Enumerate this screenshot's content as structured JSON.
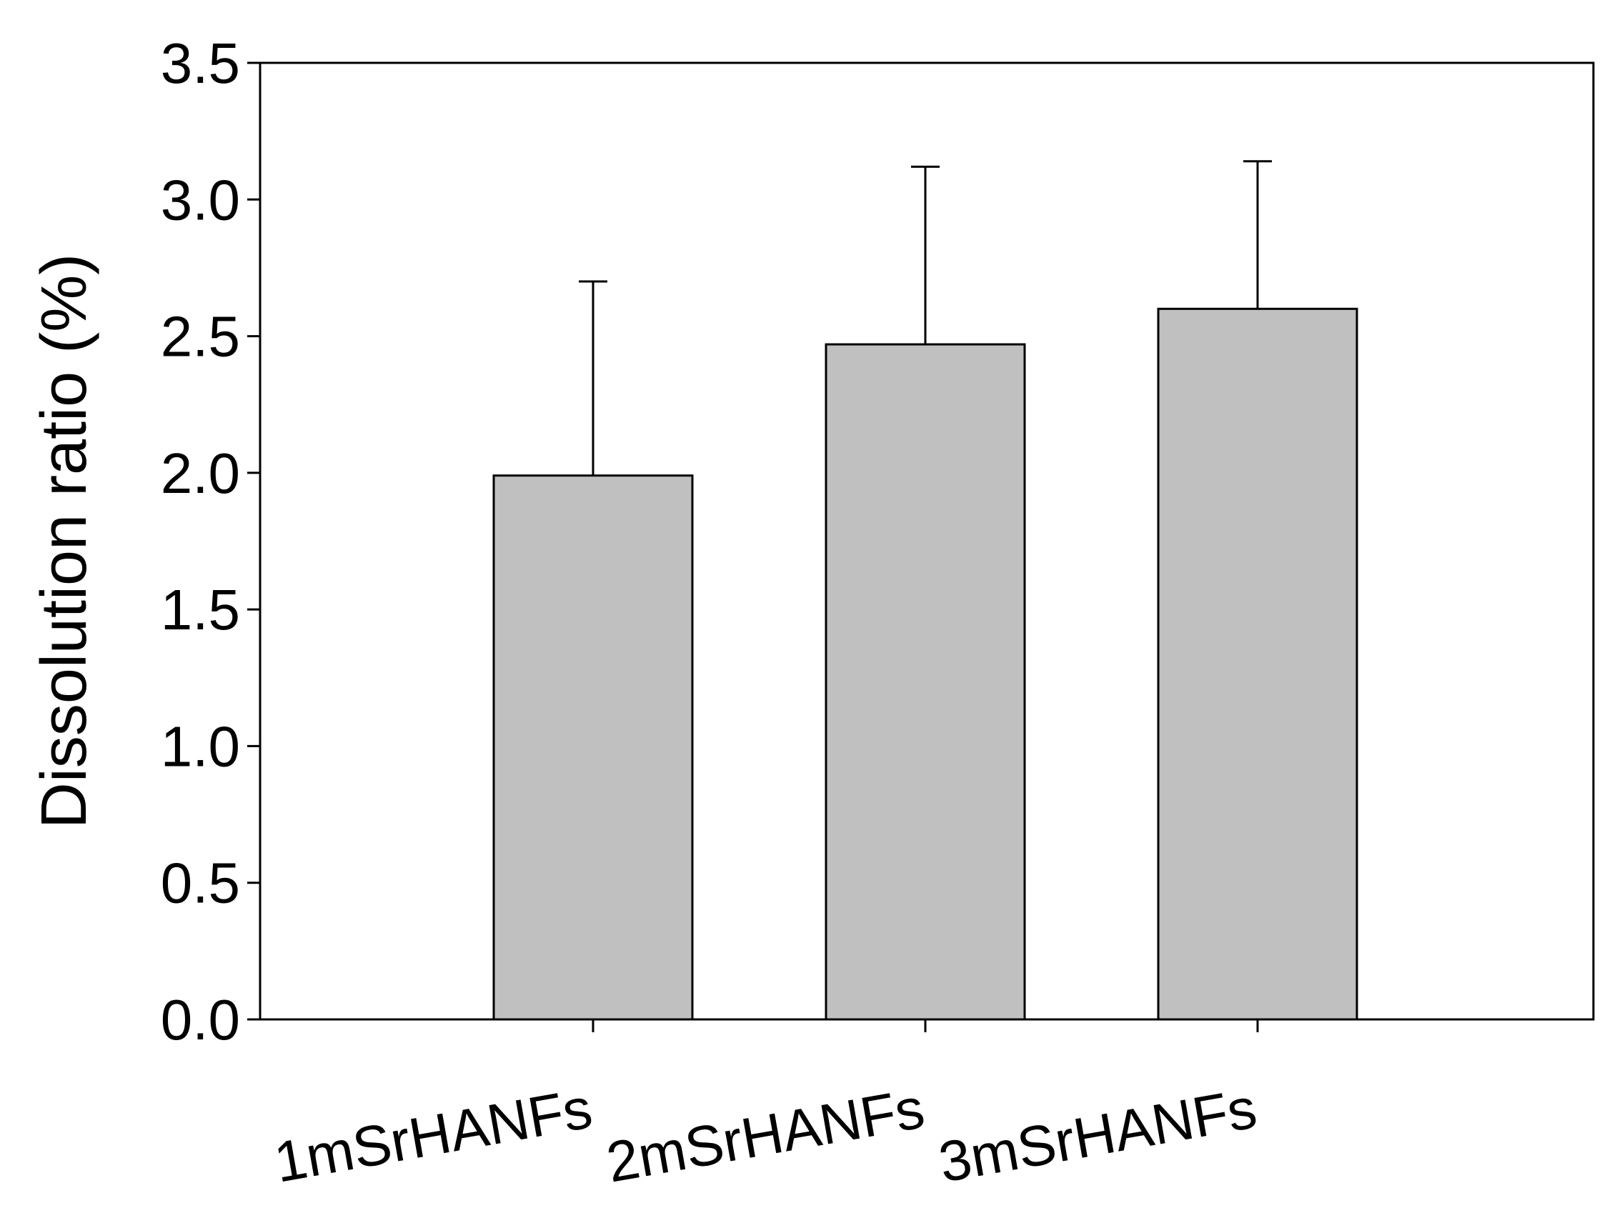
{
  "chart_data": {
    "type": "bar",
    "title": "",
    "xlabel": "",
    "ylabel": "Dissolution ratio (%)",
    "categories": [
      "1mSrHANFs",
      "2mSrHANFs",
      "3mSrHANFs"
    ],
    "values": [
      1.99,
      2.47,
      2.6
    ],
    "error_upper": [
      0.71,
      0.65,
      0.54
    ],
    "ylim": [
      0,
      3.5
    ],
    "yticks": [
      0.0,
      0.5,
      1.0,
      1.5,
      2.0,
      2.5,
      3.0,
      3.5
    ],
    "ytick_labels": [
      "0.0",
      "0.5",
      "1.0",
      "1.5",
      "2.0",
      "2.5",
      "3.0",
      "3.5"
    ],
    "grid": false,
    "legend": "none",
    "bar_color": "#c0c0c0",
    "edge_color": "#000000"
  }
}
